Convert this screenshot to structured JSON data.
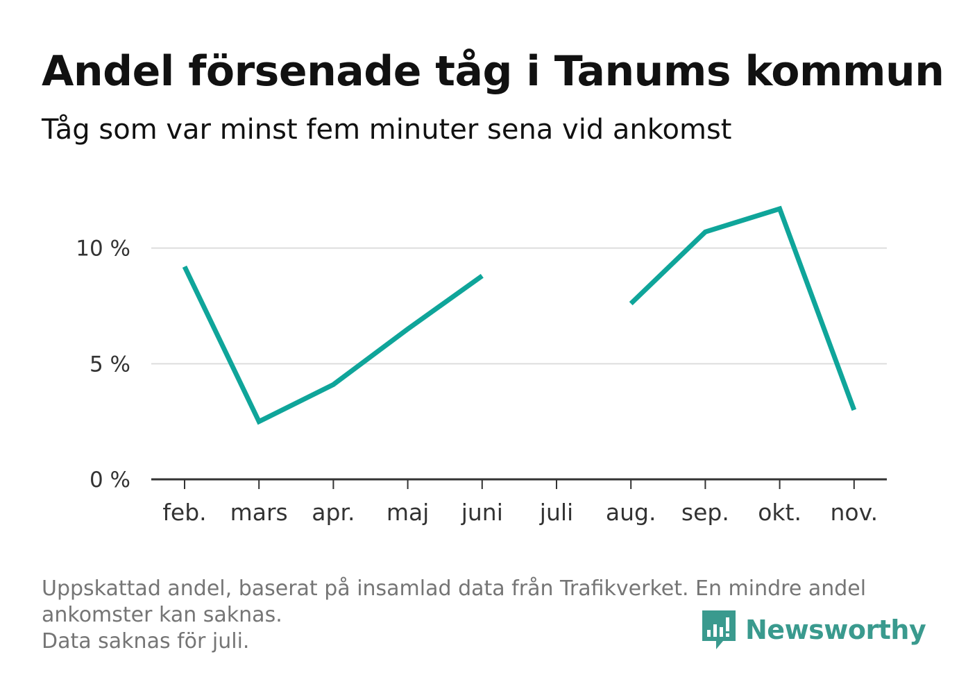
{
  "title": "Andel försenade tåg i Tanums kommun",
  "subtitle": "Tåg som var minst fem minuter sena vid ankomst",
  "footnote": {
    "line1": "Uppskattad andel, baserat på insamlad data från Trafikverket. En mindre andel",
    "line2": "ankomster kan saknas.",
    "line3": "Data saknas för juli."
  },
  "logo": {
    "text": "Newsworthy",
    "icon": "newsworthy-bars-icon",
    "color": "#3a9a8e"
  },
  "colors": {
    "line": "#0fa59a",
    "grid": "#dddddd",
    "axis": "#333333",
    "text": "#333333"
  },
  "chart_data": {
    "type": "line",
    "categories": [
      "feb.",
      "mars",
      "apr.",
      "maj",
      "juni",
      "juli",
      "aug.",
      "sep.",
      "okt.",
      "nov."
    ],
    "series": [
      {
        "values": [
          9.2,
          2.5,
          4.1,
          6.5,
          8.8,
          null,
          7.6,
          10.7,
          11.7,
          3.0
        ]
      }
    ],
    "yticks": [
      {
        "value": 0,
        "label": "0 %"
      },
      {
        "value": 5,
        "label": "5 %"
      },
      {
        "value": 10,
        "label": "10 %"
      }
    ],
    "ylim": [
      0,
      12
    ],
    "grid": true,
    "xlabel": "",
    "ylabel": ""
  }
}
